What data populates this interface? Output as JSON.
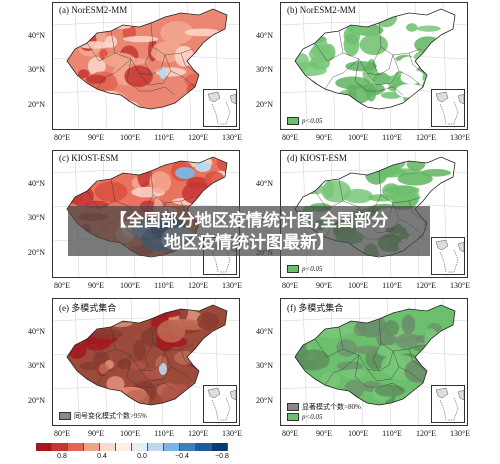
{
  "banner": {
    "line1": "【全国部分地区疫情统计图,全国部分",
    "line2": "地区疫情统计图最新】"
  },
  "panels": [
    {
      "id": "a",
      "title": "(a) NorESM2-MM",
      "style": "red"
    },
    {
      "id": "b",
      "title": "(b) NorESM2-MM",
      "style": "green",
      "legend": [
        {
          "label": "p<0.05",
          "color": "#6cbf6c"
        }
      ]
    },
    {
      "id": "c",
      "title": "(c) KIOST-ESM",
      "style": "mixed"
    },
    {
      "id": "d",
      "title": "(d) KIOST-ESM",
      "style": "green",
      "legend": [
        {
          "label": "p<0.05",
          "color": "#6cbf6c"
        }
      ]
    },
    {
      "id": "e",
      "title": "(e) 多模式集合",
      "style": "darkred",
      "legend": [
        {
          "label": "同号变化模式个数>95%",
          "color": "#888888"
        }
      ]
    },
    {
      "id": "f",
      "title": "(f) 多模式集合",
      "style": "greengray",
      "legend": [
        {
          "label": "显著模式个数>80%",
          "color": "#888888"
        },
        {
          "label": "p<0.05",
          "color": "#6cbf6c"
        }
      ]
    }
  ],
  "axes": {
    "lat_labels": [
      "40°N",
      "30°N",
      "20°N"
    ],
    "lon_labels": [
      "80°E",
      "90°E",
      "100°E",
      "110°E",
      "120°E",
      "130°E"
    ]
  },
  "colorbar": {
    "labels": [
      "0.8",
      "0.4",
      "0.0",
      "−0.4",
      "−0.8"
    ],
    "colors": [
      "#a3171e",
      "#c63532",
      "#e06650",
      "#f1a08a",
      "#fbd8cc",
      "#fdeeea",
      "#e3eef8",
      "#bcd7ee",
      "#7fb2dc",
      "#3f7fbd",
      "#1f5a9c",
      "#0b3a73"
    ]
  }
}
